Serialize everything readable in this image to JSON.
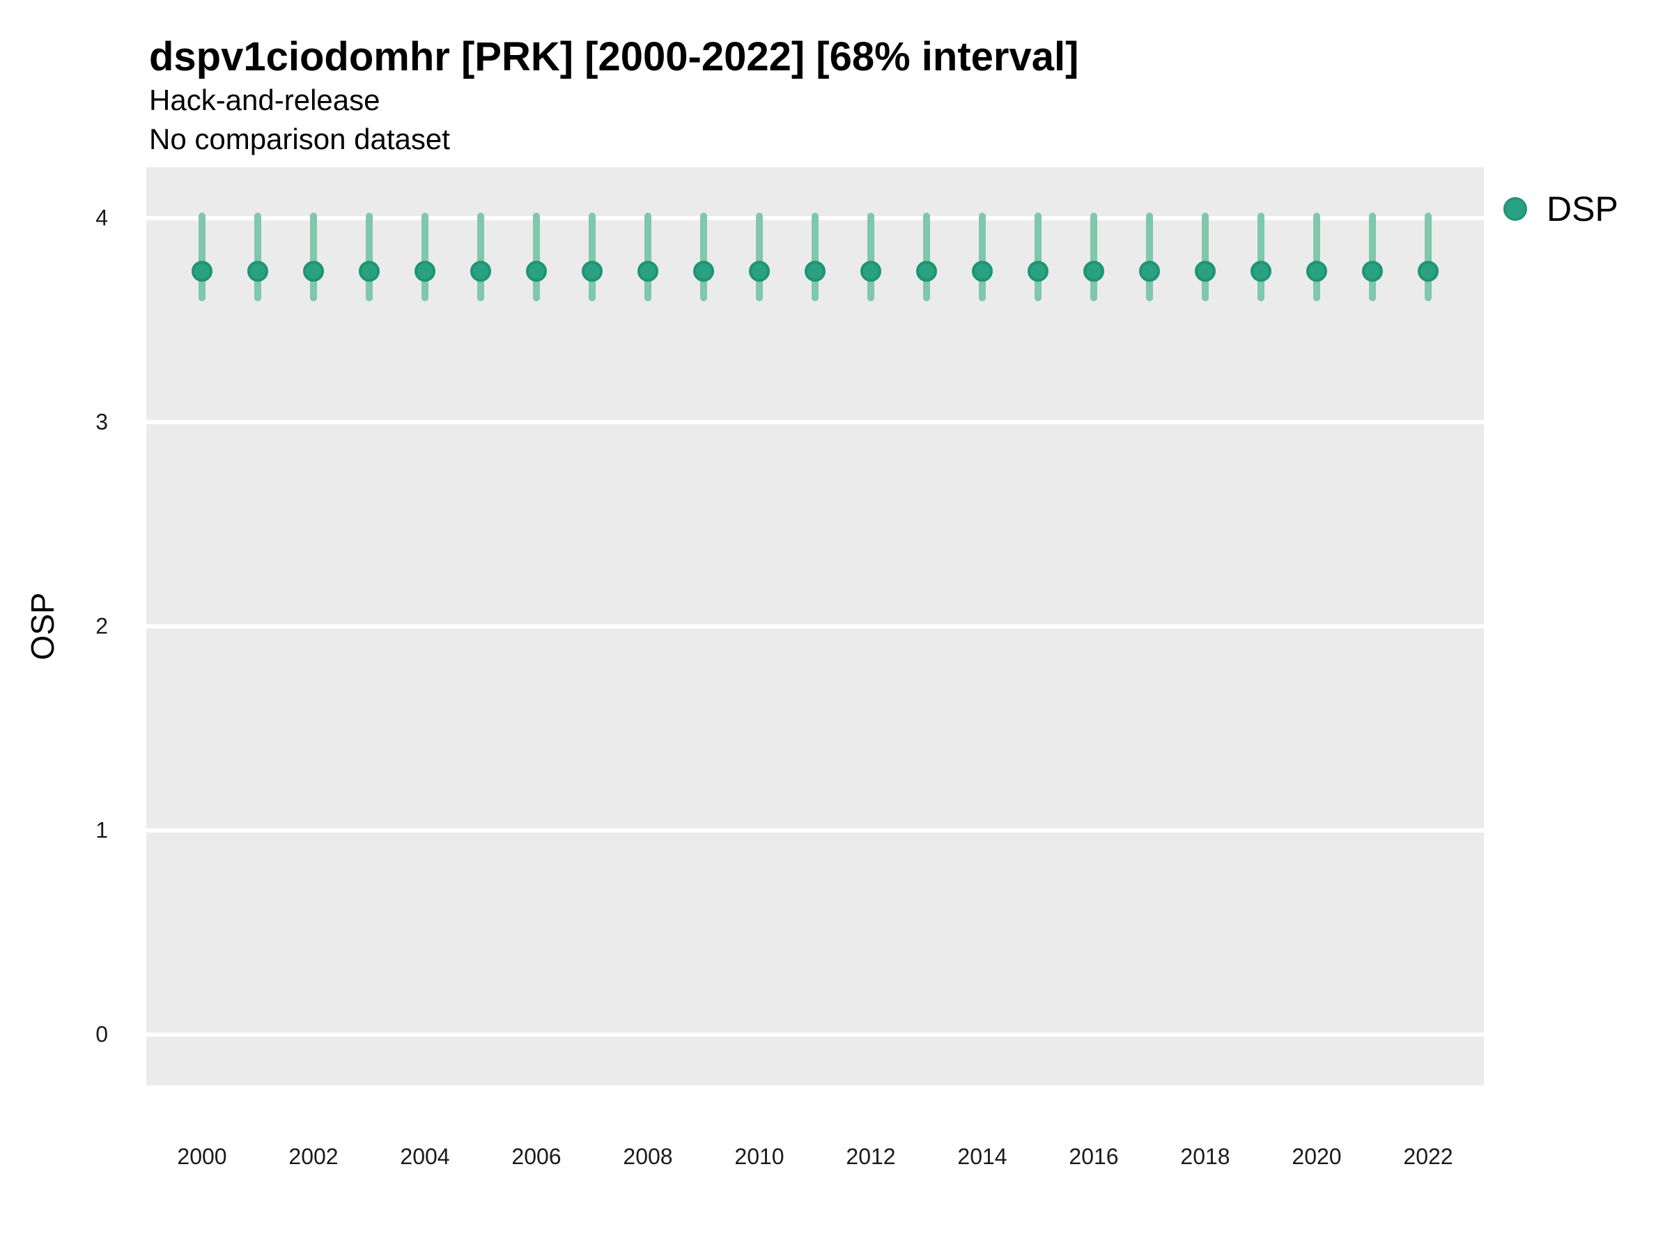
{
  "header": {
    "title": "dspv1ciodomhr [PRK] [2000-2022] [68% interval]",
    "subtitle1": "Hack-and-release",
    "subtitle2": "No comparison dataset"
  },
  "legend": {
    "label": "DSP"
  },
  "axes": {
    "y_title": "OSP",
    "x_title": ""
  },
  "colors": {
    "background": "#FFFFFF",
    "panel": "#EBEBEB",
    "grid": "#FFFFFF",
    "point_fill": "#2BA183",
    "point_stroke": "#1E9572",
    "errorbar": "#7FC7AD",
    "text": "#000000",
    "tick_text": "#1A1A1A"
  },
  "chart_data": {
    "type": "scatter",
    "subtype": "pointrange",
    "title": "dspv1ciodomhr [PRK] [2000-2022] [68% interval]",
    "subtitle": "Hack-and-release",
    "note": "No comparison dataset",
    "interval": "68%",
    "xlabel": "",
    "ylabel": "OSP",
    "xlim": [
      1999,
      2023
    ],
    "ylim": [
      -0.25,
      4.25
    ],
    "x_ticks": [
      2000,
      2002,
      2004,
      2006,
      2008,
      2010,
      2012,
      2014,
      2016,
      2018,
      2020,
      2022
    ],
    "y_ticks": [
      0,
      1,
      2,
      3,
      4
    ],
    "grid": "major-horizontal-only",
    "legend_position": "right",
    "series": [
      {
        "name": "DSP",
        "x": [
          2000,
          2001,
          2002,
          2003,
          2004,
          2005,
          2006,
          2007,
          2008,
          2009,
          2010,
          2011,
          2012,
          2013,
          2014,
          2015,
          2016,
          2017,
          2018,
          2019,
          2020,
          2021,
          2022
        ],
        "y": [
          3.74,
          3.74,
          3.74,
          3.74,
          3.74,
          3.74,
          3.74,
          3.74,
          3.74,
          3.74,
          3.74,
          3.74,
          3.74,
          3.74,
          3.74,
          3.74,
          3.74,
          3.74,
          3.74,
          3.74,
          3.74,
          3.74,
          3.74
        ],
        "y_lo": [
          3.61,
          3.61,
          3.61,
          3.61,
          3.61,
          3.61,
          3.61,
          3.61,
          3.61,
          3.61,
          3.61,
          3.61,
          3.61,
          3.61,
          3.61,
          3.61,
          3.61,
          3.61,
          3.61,
          3.61,
          3.61,
          3.61,
          3.61
        ],
        "y_hi": [
          4.01,
          4.01,
          4.01,
          4.01,
          4.01,
          4.01,
          4.01,
          4.01,
          4.01,
          4.01,
          4.01,
          4.01,
          4.01,
          4.01,
          4.01,
          4.01,
          4.01,
          4.01,
          4.01,
          4.01,
          4.01,
          4.01,
          4.01
        ]
      }
    ]
  }
}
